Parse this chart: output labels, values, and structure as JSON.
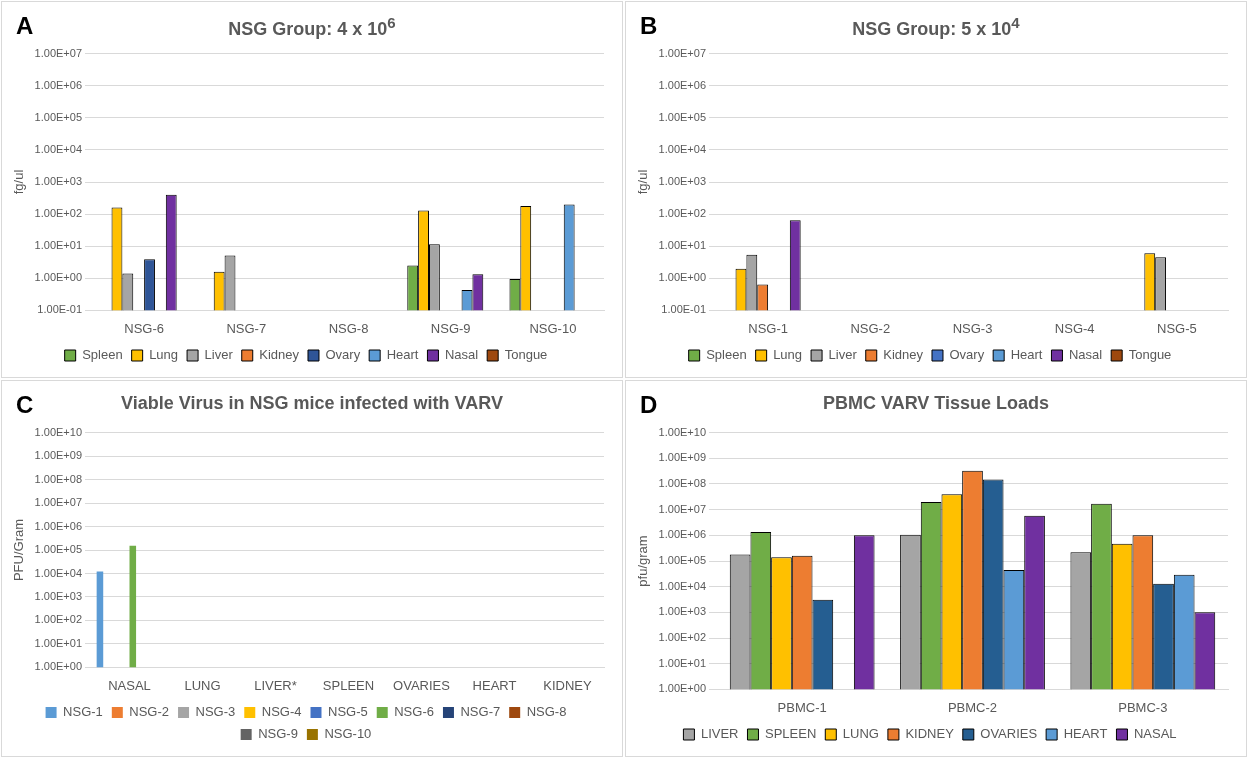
{
  "chart_data": [
    {
      "type": "bar",
      "title": "NSG Group: 4 x 10$^{6}$",
      "ylabel": "fg/ul",
      "annotations": [
        "A"
      ],
      "categories": [
        "NSG-6",
        "NSG-7",
        "NSG-8",
        "NSG-9",
        "NSG-10"
      ],
      "log": true,
      "grid": true,
      "legend": "bottom",
      "ylim": [
        0.1,
        10000000
      ],
      "yticks": [
        {
          "value": 0.1,
          "label": "1.00E-01"
        },
        {
          "value": 1,
          "label": "1.00E+00"
        },
        {
          "value": 10,
          "label": "1.00E+01"
        },
        {
          "value": 100,
          "label": "1.00E+02"
        },
        {
          "value": 1000,
          "label": "1.00E+03"
        },
        {
          "value": 10000,
          "label": "1.00E+04"
        },
        {
          "value": 100000,
          "label": "1.00E+05"
        },
        {
          "value": 1000000,
          "label": "1.00E+06"
        },
        {
          "value": 10000000,
          "label": "1.00E+07"
        }
      ],
      "series": [
        {
          "name": "Spleen",
          "color": "#70ad47",
          "values": [
            null,
            null,
            null,
            2.5,
            0.95
          ]
        },
        {
          "name": "Lung",
          "color": "#ffc000",
          "values": [
            160,
            1.6,
            null,
            130,
            180
          ]
        },
        {
          "name": "Liver",
          "color": "#a5a5a5",
          "values": [
            1.4,
            5.1,
            null,
            11.5,
            null
          ]
        },
        {
          "name": "Kidney",
          "color": "#ed7d31",
          "values": [
            null,
            null,
            null,
            null,
            null
          ]
        },
        {
          "name": "Ovary",
          "color": "#2f5597",
          "values": [
            3.9,
            null,
            null,
            null,
            null
          ]
        },
        {
          "name": "Heart",
          "color": "#5b9bd5",
          "values": [
            null,
            null,
            null,
            0.43,
            200
          ]
        },
        {
          "name": "Nasal",
          "color": "#7030a0",
          "values": [
            400,
            null,
            null,
            1.34,
            null
          ]
        },
        {
          "name": "Tongue",
          "color": "#9e480e",
          "values": [
            null,
            null,
            null,
            null,
            null
          ]
        }
      ]
    },
    {
      "type": "bar",
      "title": "NSG Group: 5 x 10$^{4}$",
      "ylabel": "fg/ul",
      "annotations": [
        "B"
      ],
      "categories": [
        "NSG-1",
        "NSG-2",
        "NSG-3",
        "NSG-4",
        "NSG-5"
      ],
      "log": true,
      "grid": true,
      "legend": "bottom",
      "ylim": [
        0.1,
        10000000
      ],
      "yticks": [
        {
          "value": 0.1,
          "label": "1.00E-01"
        },
        {
          "value": 1,
          "label": "1.00E+00"
        },
        {
          "value": 10,
          "label": "1.00E+01"
        },
        {
          "value": 100,
          "label": "1.00E+02"
        },
        {
          "value": 1000,
          "label": "1.00E+03"
        },
        {
          "value": 10000,
          "label": "1.00E+04"
        },
        {
          "value": 100000,
          "label": "1.00E+05"
        },
        {
          "value": 1000000,
          "label": "1.00E+06"
        },
        {
          "value": 10000000,
          "label": "1.00E+07"
        }
      ],
      "series": [
        {
          "name": "Spleen",
          "color": "#70ad47",
          "values": [
            null,
            null,
            null,
            null,
            null
          ]
        },
        {
          "name": "Lung",
          "color": "#ffc000",
          "values": [
            2.0,
            null,
            null,
            null,
            6.0
          ]
        },
        {
          "name": "Liver",
          "color": "#a5a5a5",
          "values": [
            5.4,
            null,
            null,
            null,
            4.5
          ]
        },
        {
          "name": "Kidney",
          "color": "#ed7d31",
          "values": [
            0.64,
            null,
            null,
            null,
            null
          ]
        },
        {
          "name": "Ovary",
          "color": "#4472c4",
          "values": [
            null,
            null,
            null,
            null,
            null
          ]
        },
        {
          "name": "Heart",
          "color": "#5b9bd5",
          "values": [
            null,
            null,
            null,
            null,
            null
          ]
        },
        {
          "name": "Nasal",
          "color": "#7030a0",
          "values": [
            64,
            null,
            null,
            null,
            null
          ]
        },
        {
          "name": "Tongue",
          "color": "#9e480e",
          "values": [
            null,
            null,
            null,
            null,
            null
          ]
        }
      ]
    },
    {
      "type": "bar",
      "title": "Viable Virus in NSG mice infected with VARV",
      "ylabel": "PFU/Gram",
      "annotations": [
        "C"
      ],
      "categories": [
        "NASAL",
        "LUNG",
        "LIVER*",
        "SPLEEN",
        "OVARIES",
        "HEART",
        "KIDNEY"
      ],
      "log": true,
      "grid": true,
      "legend": "bottom",
      "ylim": [
        1,
        10000000000
      ],
      "yticks": [
        {
          "value": 1,
          "label": "1.00E+00"
        },
        {
          "value": 10,
          "label": "1.00E+01"
        },
        {
          "value": 100,
          "label": "1.00E+02"
        },
        {
          "value": 1000,
          "label": "1.00E+03"
        },
        {
          "value": 10000,
          "label": "1.00E+04"
        },
        {
          "value": 100000,
          "label": "1.00E+05"
        },
        {
          "value": 1000000,
          "label": "1.00E+06"
        },
        {
          "value": 10000000,
          "label": "1.00E+07"
        },
        {
          "value": 100000000,
          "label": "1.00E+08"
        },
        {
          "value": 1000000000,
          "label": "1.00E+09"
        },
        {
          "value": 10000000000,
          "label": "1.00E+10"
        }
      ],
      "series": [
        {
          "name": "NSG-1",
          "color": "#5b9bd5",
          "values": [
            12000,
            null,
            null,
            null,
            null,
            null,
            null
          ]
        },
        {
          "name": "NSG-2",
          "color": "#ed7d31",
          "values": [
            null,
            null,
            null,
            null,
            null,
            null,
            null
          ]
        },
        {
          "name": "NSG-3",
          "color": "#a5a5a5",
          "values": [
            null,
            null,
            null,
            null,
            null,
            null,
            null
          ]
        },
        {
          "name": "NSG-4",
          "color": "#ffc000",
          "values": [
            null,
            null,
            null,
            null,
            null,
            null,
            null
          ]
        },
        {
          "name": "NSG-5",
          "color": "#4472c4",
          "values": [
            null,
            null,
            null,
            null,
            null,
            null,
            null
          ]
        },
        {
          "name": "NSG-6",
          "color": "#70ad47",
          "values": [
            150000,
            null,
            null,
            null,
            null,
            null,
            null
          ]
        },
        {
          "name": "NSG-7",
          "color": "#264478",
          "values": [
            null,
            null,
            null,
            null,
            null,
            null,
            null
          ]
        },
        {
          "name": "NSG-8",
          "color": "#9e480e",
          "values": [
            null,
            null,
            null,
            null,
            null,
            null,
            null
          ]
        },
        {
          "name": "NSG-9",
          "color": "#636363",
          "values": [
            null,
            null,
            null,
            null,
            null,
            null,
            null
          ]
        },
        {
          "name": "NSG-10",
          "color": "#997300",
          "values": [
            null,
            null,
            null,
            null,
            null,
            null,
            null
          ]
        }
      ]
    },
    {
      "type": "bar",
      "title": "PBMC VARV Tissue Loads",
      "ylabel": "pfu/gram",
      "annotations": [
        "D"
      ],
      "categories": [
        "PBMC-1",
        "PBMC-2",
        "PBMC-3"
      ],
      "log": true,
      "grid": true,
      "legend": "bottom",
      "ylim": [
        1,
        10000000000
      ],
      "yticks": [
        {
          "value": 1,
          "label": "1.00E+00"
        },
        {
          "value": 10,
          "label": "1.00E+01"
        },
        {
          "value": 100,
          "label": "1.00E+02"
        },
        {
          "value": 1000,
          "label": "1.00E+03"
        },
        {
          "value": 10000,
          "label": "1.00E+04"
        },
        {
          "value": 100000,
          "label": "1.00E+05"
        },
        {
          "value": 1000000,
          "label": "1.00E+06"
        },
        {
          "value": 10000000,
          "label": "1.00E+07"
        },
        {
          "value": 100000000,
          "label": "1.00E+08"
        },
        {
          "value": 1000000000,
          "label": "1.00E+09"
        },
        {
          "value": 10000000000,
          "label": "1.00E+10"
        }
      ],
      "series": [
        {
          "name": "LIVER",
          "color": "#a5a5a5",
          "values": [
            180000,
            1050000,
            220000
          ]
        },
        {
          "name": "SPLEEN",
          "color": "#70ad47",
          "values": [
            1350000,
            20000000,
            17000000
          ]
        },
        {
          "name": "LUNG",
          "color": "#ffc000",
          "values": [
            140000,
            40000000,
            470000
          ]
        },
        {
          "name": "KIDNEY",
          "color": "#ed7d31",
          "values": [
            160000,
            330000000,
            1000000
          ]
        },
        {
          "name": "OVARIES",
          "color": "#255e91",
          "values": [
            3100,
            150000000,
            13000
          ]
        },
        {
          "name": "HEART",
          "color": "#5b9bd5",
          "values": [
            null,
            45000,
            29000
          ]
        },
        {
          "name": "NASAL",
          "color": "#7030a0",
          "values": [
            1000000,
            5800000,
            1000
          ]
        }
      ]
    }
  ]
}
